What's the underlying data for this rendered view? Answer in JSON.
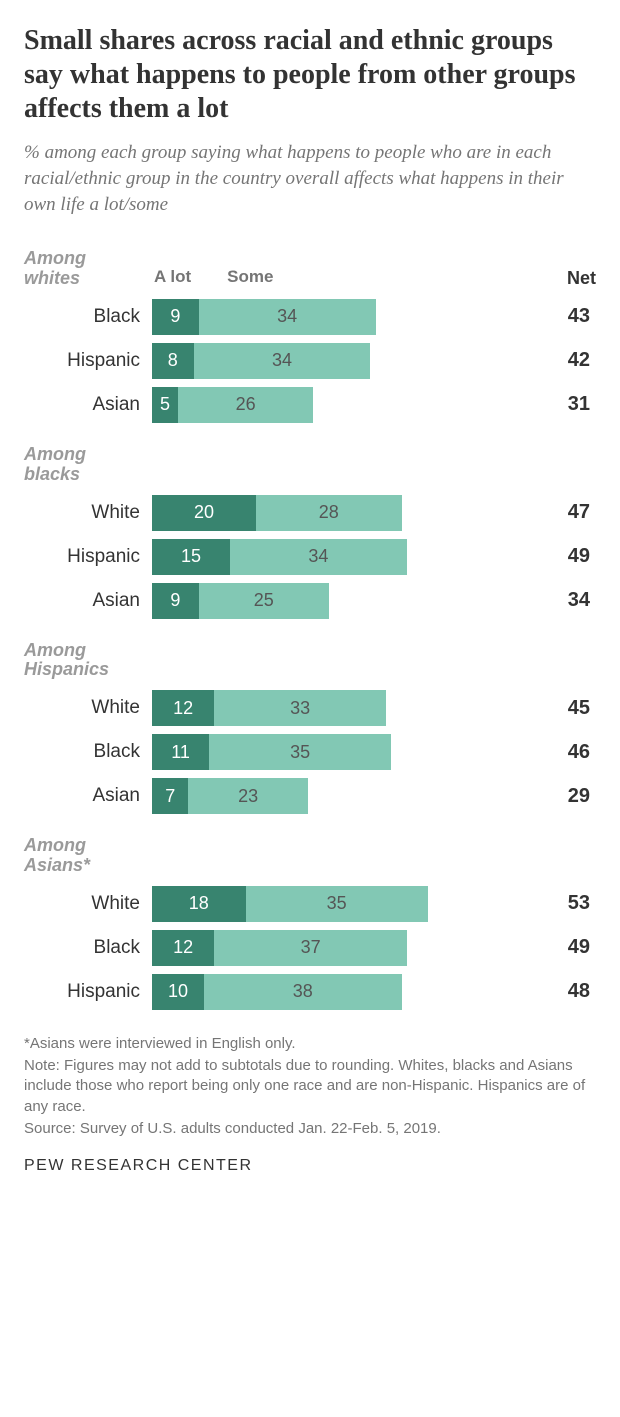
{
  "title": "Small shares across racial and ethnic groups say what happens to people from other groups affects them a lot",
  "subtitle": "% among each group saying what happens to people who are in each racial/ethnic group in the country overall affects what happens in their own life a lot/some",
  "legend": {
    "alot": "A lot",
    "some": "Some",
    "net": "Net"
  },
  "colors": {
    "dark": "#38846f",
    "light": "#82c8b4",
    "text_dark_seg": "#ffffff",
    "text_light_seg": "#555555",
    "bg": "#ffffff"
  },
  "chart": {
    "scale_pct_per_unit": 5.2,
    "groups": [
      {
        "header": "Among\nwhites",
        "show_legend_row": true,
        "rows": [
          {
            "label": "Black",
            "alot": 9,
            "some": 34,
            "net": 43
          },
          {
            "label": "Hispanic",
            "alot": 8,
            "some": 34,
            "net": 42
          },
          {
            "label": "Asian",
            "alot": 5,
            "some": 26,
            "net": 31
          }
        ]
      },
      {
        "header": "Among\nblacks",
        "show_legend_row": false,
        "rows": [
          {
            "label": "White",
            "alot": 20,
            "some": 28,
            "net": 47
          },
          {
            "label": "Hispanic",
            "alot": 15,
            "some": 34,
            "net": 49
          },
          {
            "label": "Asian",
            "alot": 9,
            "some": 25,
            "net": 34
          }
        ]
      },
      {
        "header": "Among\nHispanics",
        "show_legend_row": false,
        "rows": [
          {
            "label": "White",
            "alot": 12,
            "some": 33,
            "net": 45
          },
          {
            "label": "Black",
            "alot": 11,
            "some": 35,
            "net": 46
          },
          {
            "label": "Asian",
            "alot": 7,
            "some": 23,
            "net": 29
          }
        ]
      },
      {
        "header": "Among\nAsians*",
        "show_legend_row": false,
        "rows": [
          {
            "label": "White",
            "alot": 18,
            "some": 35,
            "net": 53
          },
          {
            "label": "Black",
            "alot": 12,
            "some": 37,
            "net": 49
          },
          {
            "label": "Hispanic",
            "alot": 10,
            "some": 38,
            "net": 48
          }
        ]
      }
    ]
  },
  "footnotes": [
    "*Asians were interviewed in English only.",
    "Note: Figures may not add to subtotals due to rounding. Whites, blacks and Asians include those who report being only one race and are non-Hispanic. Hispanics are of any race.",
    "Source: Survey of U.S. adults conducted Jan. 22-Feb. 5, 2019."
  ],
  "source": "PEW RESEARCH CENTER"
}
